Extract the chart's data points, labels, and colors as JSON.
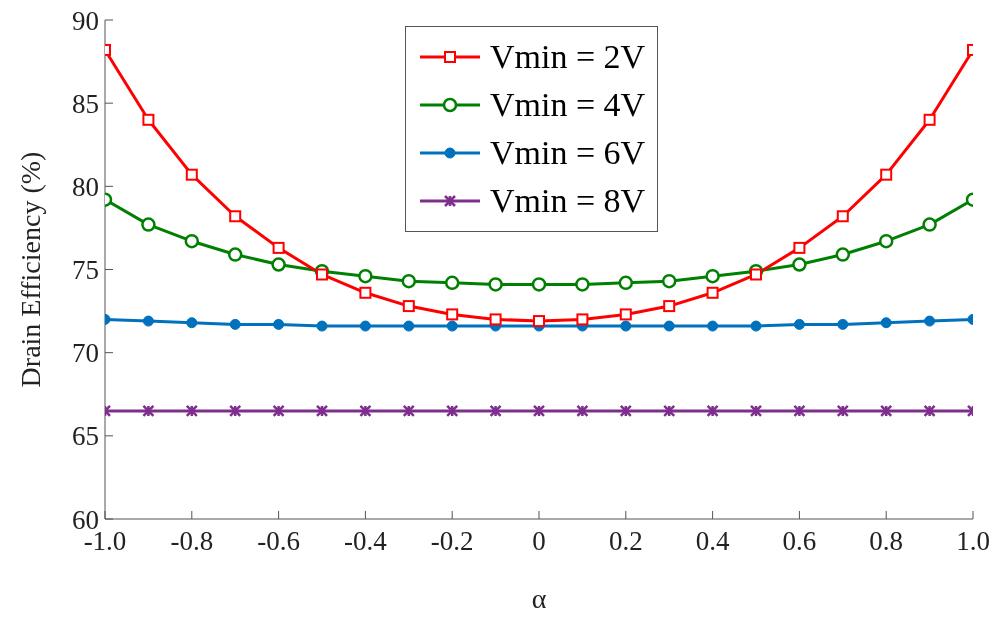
{
  "chart_data": {
    "type": "line",
    "xlabel": "α",
    "ylabel": "Drain Efficiency (%)",
    "x": [
      -1.0,
      -0.9,
      -0.8,
      -0.7,
      -0.6,
      -0.5,
      -0.4,
      -0.3,
      -0.2,
      -0.1,
      0,
      0.1,
      0.2,
      0.3,
      0.4,
      0.5,
      0.6,
      0.7,
      0.8,
      0.9,
      1.0
    ],
    "xlim": [
      -1,
      1
    ],
    "xticks": [
      {
        "value": -1,
        "label": "-1.0"
      },
      {
        "value": -0.8,
        "label": "-0.8"
      },
      {
        "value": -0.6,
        "label": "-0.6"
      },
      {
        "value": -0.4,
        "label": "-0.4"
      },
      {
        "value": -0.2,
        "label": "-0.2"
      },
      {
        "value": 0,
        "label": "0"
      },
      {
        "value": 0.2,
        "label": "0.2"
      },
      {
        "value": 0.4,
        "label": "0.4"
      },
      {
        "value": 0.6,
        "label": "0.6"
      },
      {
        "value": 0.8,
        "label": "0.8"
      },
      {
        "value": 1,
        "label": "1.0"
      }
    ],
    "ylim": [
      60,
      90
    ],
    "yticks": [
      60,
      65,
      70,
      75,
      80,
      85,
      90
    ],
    "grid": false,
    "legend": "top",
    "line_style": "solid",
    "series": [
      {
        "name": "Vmin = 2V",
        "color": "#ff0000",
        "marker": "square",
        "values": [
          88.2,
          84.0,
          80.7,
          78.2,
          76.3,
          74.7,
          73.6,
          72.8,
          72.3,
          72.0,
          71.9,
          72.0,
          72.3,
          72.8,
          73.6,
          74.7,
          76.3,
          78.2,
          80.7,
          84.0,
          88.2
        ]
      },
      {
        "name": "Vmin = 4V",
        "color": "#008000",
        "marker": "circle",
        "values": [
          79.2,
          77.7,
          76.7,
          75.9,
          75.3,
          74.9,
          74.6,
          74.3,
          74.2,
          74.1,
          74.1,
          74.1,
          74.2,
          74.3,
          74.6,
          74.9,
          75.3,
          75.9,
          76.7,
          77.7,
          79.2
        ]
      },
      {
        "name": "Vmin = 6V",
        "color": "#0072bd",
        "marker": "filled-circle",
        "values": [
          72.0,
          71.9,
          71.8,
          71.7,
          71.7,
          71.6,
          71.6,
          71.6,
          71.6,
          71.6,
          71.6,
          71.6,
          71.6,
          71.6,
          71.6,
          71.6,
          71.7,
          71.7,
          71.8,
          71.9,
          72.0
        ]
      },
      {
        "name": "Vmin = 8V",
        "color": "#7e2f8e",
        "marker": "cross",
        "values": [
          66.5,
          66.5,
          66.5,
          66.5,
          66.5,
          66.5,
          66.5,
          66.5,
          66.5,
          66.5,
          66.5,
          66.5,
          66.5,
          66.5,
          66.5,
          66.5,
          66.5,
          66.5,
          66.5,
          66.5,
          66.5
        ]
      }
    ]
  }
}
